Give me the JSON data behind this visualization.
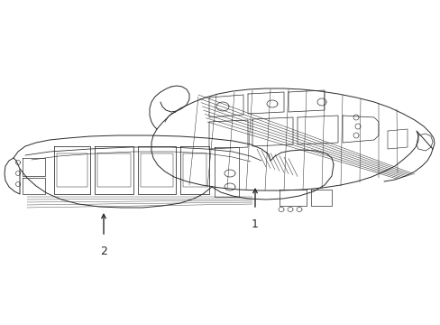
{
  "background_color": "#ffffff",
  "line_color": "#2a2a2a",
  "line_width": 0.7,
  "figsize": [
    4.89,
    3.6
  ],
  "dpi": 100,
  "label1": "1",
  "label2": "2"
}
